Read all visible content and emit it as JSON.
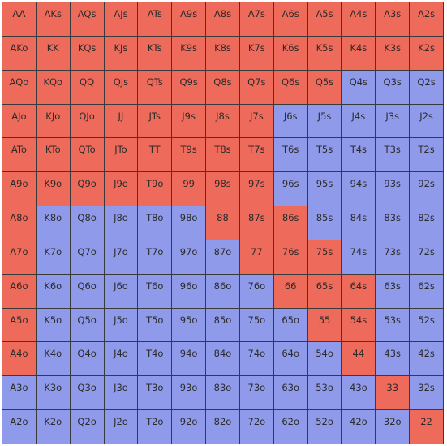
{
  "colors": {
    "raise": "#ee6a5a",
    "fold": "#8f9bea",
    "grid_line": "#3a3a3a"
  },
  "hand_grid": {
    "rows": [
      [
        {
          "hand": "AA",
          "action": "raise"
        },
        {
          "hand": "AKs",
          "action": "raise"
        },
        {
          "hand": "AQs",
          "action": "raise"
        },
        {
          "hand": "AJs",
          "action": "raise"
        },
        {
          "hand": "ATs",
          "action": "raise"
        },
        {
          "hand": "A9s",
          "action": "raise"
        },
        {
          "hand": "A8s",
          "action": "raise"
        },
        {
          "hand": "A7s",
          "action": "raise"
        },
        {
          "hand": "A6s",
          "action": "raise"
        },
        {
          "hand": "A5s",
          "action": "raise"
        },
        {
          "hand": "A4s",
          "action": "raise"
        },
        {
          "hand": "A3s",
          "action": "raise"
        },
        {
          "hand": "A2s",
          "action": "raise"
        }
      ],
      [
        {
          "hand": "AKo",
          "action": "raise"
        },
        {
          "hand": "KK",
          "action": "raise"
        },
        {
          "hand": "KQs",
          "action": "raise"
        },
        {
          "hand": "KJs",
          "action": "raise"
        },
        {
          "hand": "KTs",
          "action": "raise"
        },
        {
          "hand": "K9s",
          "action": "raise"
        },
        {
          "hand": "K8s",
          "action": "raise"
        },
        {
          "hand": "K7s",
          "action": "raise"
        },
        {
          "hand": "K6s",
          "action": "raise"
        },
        {
          "hand": "K5s",
          "action": "raise"
        },
        {
          "hand": "K4s",
          "action": "raise"
        },
        {
          "hand": "K3s",
          "action": "raise"
        },
        {
          "hand": "K2s",
          "action": "raise"
        }
      ],
      [
        {
          "hand": "AQo",
          "action": "raise"
        },
        {
          "hand": "KQo",
          "action": "raise"
        },
        {
          "hand": "QQ",
          "action": "raise"
        },
        {
          "hand": "QJs",
          "action": "raise"
        },
        {
          "hand": "QTs",
          "action": "raise"
        },
        {
          "hand": "Q9s",
          "action": "raise"
        },
        {
          "hand": "Q8s",
          "action": "raise"
        },
        {
          "hand": "Q7s",
          "action": "raise"
        },
        {
          "hand": "Q6s",
          "action": "raise"
        },
        {
          "hand": "Q5s",
          "action": "raise"
        },
        {
          "hand": "Q4s",
          "action": "fold"
        },
        {
          "hand": "Q3s",
          "action": "fold"
        },
        {
          "hand": "Q2s",
          "action": "fold"
        }
      ],
      [
        {
          "hand": "AJo",
          "action": "raise"
        },
        {
          "hand": "KJo",
          "action": "raise"
        },
        {
          "hand": "QJo",
          "action": "raise"
        },
        {
          "hand": "JJ",
          "action": "raise"
        },
        {
          "hand": "JTs",
          "action": "raise"
        },
        {
          "hand": "J9s",
          "action": "raise"
        },
        {
          "hand": "J8s",
          "action": "raise"
        },
        {
          "hand": "J7s",
          "action": "raise"
        },
        {
          "hand": "J6s",
          "action": "fold"
        },
        {
          "hand": "J5s",
          "action": "fold"
        },
        {
          "hand": "J4s",
          "action": "fold"
        },
        {
          "hand": "J3s",
          "action": "fold"
        },
        {
          "hand": "J2s",
          "action": "fold"
        }
      ],
      [
        {
          "hand": "ATo",
          "action": "raise"
        },
        {
          "hand": "KTo",
          "action": "raise"
        },
        {
          "hand": "QTo",
          "action": "raise"
        },
        {
          "hand": "JTo",
          "action": "raise"
        },
        {
          "hand": "TT",
          "action": "raise"
        },
        {
          "hand": "T9s",
          "action": "raise"
        },
        {
          "hand": "T8s",
          "action": "raise"
        },
        {
          "hand": "T7s",
          "action": "raise"
        },
        {
          "hand": "T6s",
          "action": "fold"
        },
        {
          "hand": "T5s",
          "action": "fold"
        },
        {
          "hand": "T4s",
          "action": "fold"
        },
        {
          "hand": "T3s",
          "action": "fold"
        },
        {
          "hand": "T2s",
          "action": "fold"
        }
      ],
      [
        {
          "hand": "A9o",
          "action": "raise"
        },
        {
          "hand": "K9o",
          "action": "raise"
        },
        {
          "hand": "Q9o",
          "action": "raise"
        },
        {
          "hand": "J9o",
          "action": "raise"
        },
        {
          "hand": "T9o",
          "action": "raise"
        },
        {
          "hand": "99",
          "action": "raise"
        },
        {
          "hand": "98s",
          "action": "raise"
        },
        {
          "hand": "97s",
          "action": "raise"
        },
        {
          "hand": "96s",
          "action": "fold"
        },
        {
          "hand": "95s",
          "action": "fold"
        },
        {
          "hand": "94s",
          "action": "fold"
        },
        {
          "hand": "93s",
          "action": "fold"
        },
        {
          "hand": "92s",
          "action": "fold"
        }
      ],
      [
        {
          "hand": "A8o",
          "action": "raise"
        },
        {
          "hand": "K8o",
          "action": "fold"
        },
        {
          "hand": "Q8o",
          "action": "fold"
        },
        {
          "hand": "J8o",
          "action": "fold"
        },
        {
          "hand": "T8o",
          "action": "fold"
        },
        {
          "hand": "98o",
          "action": "fold"
        },
        {
          "hand": "88",
          "action": "raise"
        },
        {
          "hand": "87s",
          "action": "raise"
        },
        {
          "hand": "86s",
          "action": "raise"
        },
        {
          "hand": "85s",
          "action": "fold"
        },
        {
          "hand": "84s",
          "action": "fold"
        },
        {
          "hand": "83s",
          "action": "fold"
        },
        {
          "hand": "82s",
          "action": "fold"
        }
      ],
      [
        {
          "hand": "A7o",
          "action": "raise"
        },
        {
          "hand": "K7o",
          "action": "fold"
        },
        {
          "hand": "Q7o",
          "action": "fold"
        },
        {
          "hand": "J7o",
          "action": "fold"
        },
        {
          "hand": "T7o",
          "action": "fold"
        },
        {
          "hand": "97o",
          "action": "fold"
        },
        {
          "hand": "87o",
          "action": "fold"
        },
        {
          "hand": "77",
          "action": "raise"
        },
        {
          "hand": "76s",
          "action": "raise"
        },
        {
          "hand": "75s",
          "action": "raise"
        },
        {
          "hand": "74s",
          "action": "fold"
        },
        {
          "hand": "73s",
          "action": "fold"
        },
        {
          "hand": "72s",
          "action": "fold"
        }
      ],
      [
        {
          "hand": "A6o",
          "action": "raise"
        },
        {
          "hand": "K6o",
          "action": "fold"
        },
        {
          "hand": "Q6o",
          "action": "fold"
        },
        {
          "hand": "J6o",
          "action": "fold"
        },
        {
          "hand": "T6o",
          "action": "fold"
        },
        {
          "hand": "96o",
          "action": "fold"
        },
        {
          "hand": "86o",
          "action": "fold"
        },
        {
          "hand": "76o",
          "action": "fold"
        },
        {
          "hand": "66",
          "action": "raise"
        },
        {
          "hand": "65s",
          "action": "raise"
        },
        {
          "hand": "64s",
          "action": "raise"
        },
        {
          "hand": "63s",
          "action": "fold"
        },
        {
          "hand": "62s",
          "action": "fold"
        }
      ],
      [
        {
          "hand": "A5o",
          "action": "raise"
        },
        {
          "hand": "K5o",
          "action": "fold"
        },
        {
          "hand": "Q5o",
          "action": "fold"
        },
        {
          "hand": "J5o",
          "action": "fold"
        },
        {
          "hand": "T5o",
          "action": "fold"
        },
        {
          "hand": "95o",
          "action": "fold"
        },
        {
          "hand": "85o",
          "action": "fold"
        },
        {
          "hand": "75o",
          "action": "fold"
        },
        {
          "hand": "65o",
          "action": "fold"
        },
        {
          "hand": "55",
          "action": "raise"
        },
        {
          "hand": "54s",
          "action": "raise"
        },
        {
          "hand": "53s",
          "action": "fold"
        },
        {
          "hand": "52s",
          "action": "fold"
        }
      ],
      [
        {
          "hand": "A4o",
          "action": "raise"
        },
        {
          "hand": "K4o",
          "action": "fold"
        },
        {
          "hand": "Q4o",
          "action": "fold"
        },
        {
          "hand": "J4o",
          "action": "fold"
        },
        {
          "hand": "T4o",
          "action": "fold"
        },
        {
          "hand": "94o",
          "action": "fold"
        },
        {
          "hand": "84o",
          "action": "fold"
        },
        {
          "hand": "74o",
          "action": "fold"
        },
        {
          "hand": "64o",
          "action": "fold"
        },
        {
          "hand": "54o",
          "action": "fold"
        },
        {
          "hand": "44",
          "action": "raise"
        },
        {
          "hand": "43s",
          "action": "fold"
        },
        {
          "hand": "42s",
          "action": "fold"
        }
      ],
      [
        {
          "hand": "A3o",
          "action": "fold"
        },
        {
          "hand": "K3o",
          "action": "fold"
        },
        {
          "hand": "Q3o",
          "action": "fold"
        },
        {
          "hand": "J3o",
          "action": "fold"
        },
        {
          "hand": "T3o",
          "action": "fold"
        },
        {
          "hand": "93o",
          "action": "fold"
        },
        {
          "hand": "83o",
          "action": "fold"
        },
        {
          "hand": "73o",
          "action": "fold"
        },
        {
          "hand": "63o",
          "action": "fold"
        },
        {
          "hand": "53o",
          "action": "fold"
        },
        {
          "hand": "43o",
          "action": "fold"
        },
        {
          "hand": "33",
          "action": "raise"
        },
        {
          "hand": "32s",
          "action": "fold"
        }
      ],
      [
        {
          "hand": "A2o",
          "action": "fold"
        },
        {
          "hand": "K2o",
          "action": "fold"
        },
        {
          "hand": "Q2o",
          "action": "fold"
        },
        {
          "hand": "J2o",
          "action": "fold"
        },
        {
          "hand": "T2o",
          "action": "fold"
        },
        {
          "hand": "92o",
          "action": "fold"
        },
        {
          "hand": "82o",
          "action": "fold"
        },
        {
          "hand": "72o",
          "action": "fold"
        },
        {
          "hand": "62o",
          "action": "fold"
        },
        {
          "hand": "52o",
          "action": "fold"
        },
        {
          "hand": "42o",
          "action": "fold"
        },
        {
          "hand": "32o",
          "action": "fold"
        },
        {
          "hand": "22",
          "action": "raise"
        }
      ]
    ]
  }
}
